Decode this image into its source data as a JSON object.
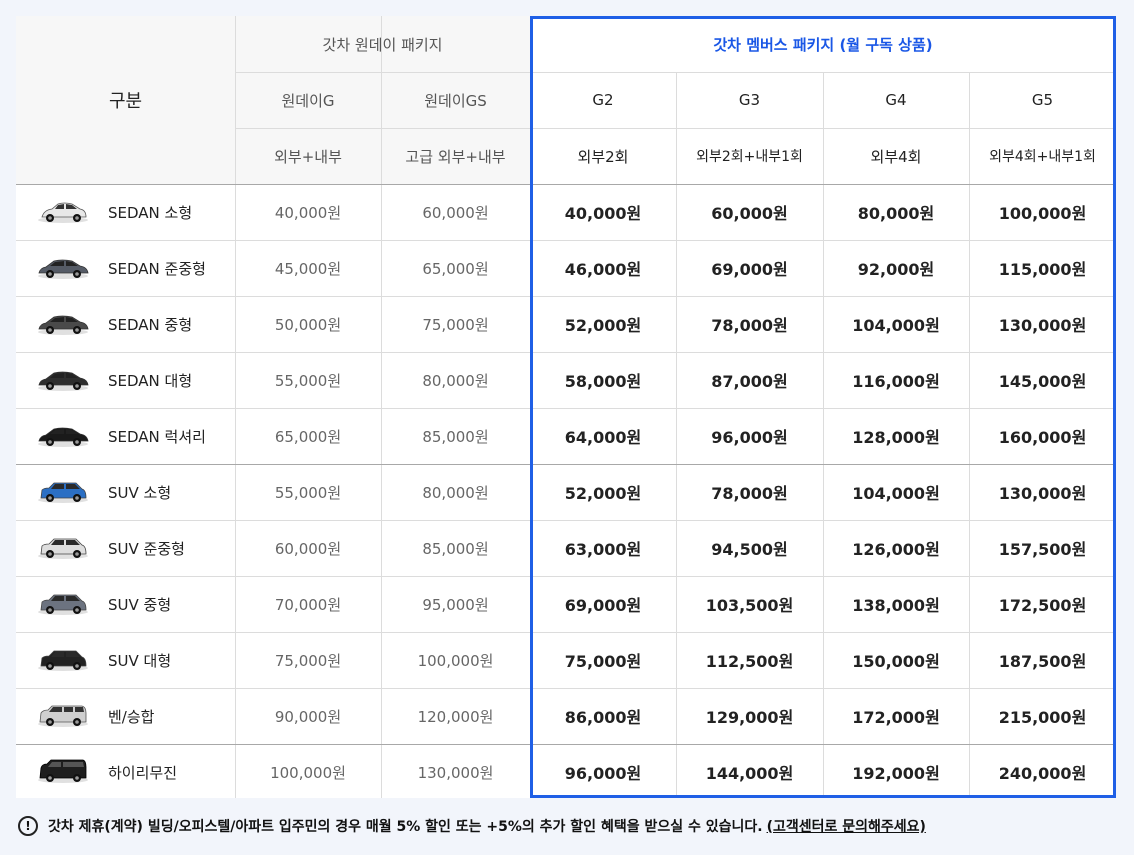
{
  "header": {
    "category": "구분",
    "oneday_package": "갓차 원데이 패키지",
    "members_package": "갓차 멤버스 패키지 (월 구독 상품)",
    "plans": [
      "원데이G",
      "원데이GS",
      "G2",
      "G3",
      "G4",
      "G5"
    ],
    "services": [
      "외부+내부",
      "고급 외부+내부",
      "외부2회",
      "외부2회+내부1회",
      "외부4회",
      "외부4회+내부1회"
    ]
  },
  "rows": [
    {
      "name": "SEDAN 소형",
      "car_icon": "compact-car-icon",
      "car_color": "#e8e8e8",
      "prices": [
        "40,000원",
        "60,000원",
        "40,000원",
        "60,000원",
        "80,000원",
        "100,000원"
      ]
    },
    {
      "name": "SEDAN 준중형",
      "car_icon": "sedan-icon",
      "car_color": "#555b66",
      "prices": [
        "45,000원",
        "65,000원",
        "46,000원",
        "69,000원",
        "92,000원",
        "115,000원"
      ]
    },
    {
      "name": "SEDAN 중형",
      "car_icon": "sedan-icon",
      "car_color": "#4a4a4a",
      "prices": [
        "50,000원",
        "75,000원",
        "52,000원",
        "78,000원",
        "104,000원",
        "130,000원"
      ]
    },
    {
      "name": "SEDAN 대형",
      "car_icon": "sedan-icon",
      "car_color": "#2e2e2e",
      "prices": [
        "55,000원",
        "80,000원",
        "58,000원",
        "87,000원",
        "116,000원",
        "145,000원"
      ]
    },
    {
      "name": "SEDAN 럭셔리",
      "car_icon": "sedan-icon",
      "car_color": "#1a1a1a",
      "prices": [
        "65,000원",
        "85,000원",
        "64,000원",
        "96,000원",
        "128,000원",
        "160,000원"
      ]
    },
    {
      "name": "SUV 소형",
      "car_icon": "suv-icon",
      "car_color": "#2b6fc4",
      "prices": [
        "55,000원",
        "80,000원",
        "52,000원",
        "78,000원",
        "104,000원",
        "130,000원"
      ]
    },
    {
      "name": "SUV 준중형",
      "car_icon": "suv-icon",
      "car_color": "#dedede",
      "prices": [
        "60,000원",
        "85,000원",
        "63,000원",
        "94,500원",
        "126,000원",
        "157,500원"
      ]
    },
    {
      "name": "SUV 중형",
      "car_icon": "suv-icon",
      "car_color": "#6c7380",
      "prices": [
        "70,000원",
        "95,000원",
        "69,000원",
        "103,500원",
        "138,000원",
        "172,500원"
      ]
    },
    {
      "name": "SUV 대형",
      "car_icon": "suv-icon",
      "car_color": "#222222",
      "prices": [
        "75,000원",
        "100,000원",
        "75,000원",
        "112,500원",
        "150,000원",
        "187,500원"
      ]
    },
    {
      "name": "벤/승합",
      "car_icon": "van-icon",
      "car_color": "#cfcfcf",
      "prices": [
        "90,000원",
        "120,000원",
        "86,000원",
        "129,000원",
        "172,000원",
        "215,000원"
      ]
    },
    {
      "name": "하이리무진",
      "car_icon": "limousine-van-icon",
      "car_color": "#1e1e1e",
      "prices": [
        "100,000원",
        "130,000원",
        "96,000원",
        "144,000원",
        "192,000원",
        "240,000원"
      ]
    }
  ],
  "note": {
    "icon": "exclamation-circle-icon",
    "text": "갓차 제휴(계약) 빌딩/오피스텔/아파트 입주민의 경우 매월 5% 할인 또는 +5%의 추가 할인 혜택을 받으실 수 있습니다.",
    "link_text": "(고객센터로 문의해주세요)"
  },
  "colors": {
    "accent": "#1f5fe6",
    "header_bg": "#f7f7f7",
    "page_bg": "#f2f5fb"
  }
}
